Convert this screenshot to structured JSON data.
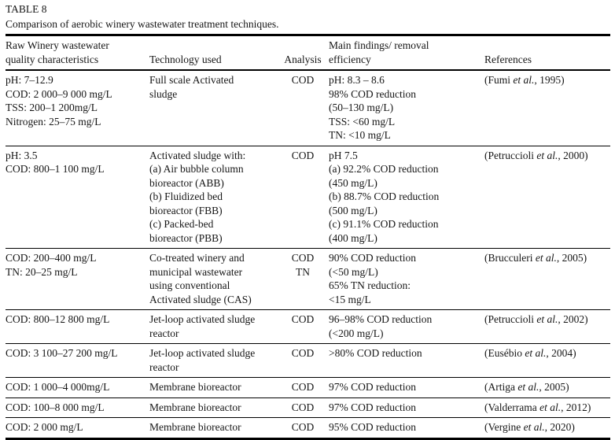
{
  "table": {
    "label": "TABLE 8",
    "caption": "Comparison of aerobic winery wastewater treatment techniques.",
    "columns": [
      "Raw Winery wastewater\nquality characteristics",
      "Technology used",
      "Analysis",
      "Main findings/ removal\nefficiency",
      "References"
    ],
    "rows": [
      {
        "characteristics": "pH: 7–12.9\nCOD: 2 000–9 000 mg/L\nTSS: 200–1 200mg/L\nNitrogen: 25–75 mg/L",
        "technology": "Full scale Activated\nsludge",
        "analysis": "COD",
        "findings": "pH: 8.3 – 8.6\n98% COD reduction\n(50–130 mg/L)\nTSS: <60 mg/L\nTN: <10 mg/L",
        "ref_pre": "(Fumi ",
        "ref_italic": "et al.",
        "ref_post": ", 1995)"
      },
      {
        "characteristics": "pH: 3.5\nCOD: 800–1 100 mg/L",
        "technology": "Activated sludge with:\n(a)  Air bubble column\nbioreactor (ABB)\n(b)  Fluidized bed\nbioreactor (FBB)\n(c)  Packed-bed\nbioreactor (PBB)",
        "analysis": "COD",
        "findings": "pH 7.5\n(a)  92.2% COD reduction\n(450 mg/L)\n(b) 88.7% COD reduction\n(500 mg/L)\n(c) 91.1% COD reduction\n(400 mg/L)",
        "ref_pre": "(Petruccioli ",
        "ref_italic": "et al.",
        "ref_post": ", 2000)"
      },
      {
        "characteristics": "COD: 200–400 mg/L\nTN: 20–25 mg/L",
        "technology": "Co-treated winery and\nmunicipal wastewater\nusing conventional\nActivated sludge (CAS)",
        "analysis": "COD\nTN",
        "findings": "90% COD reduction\n(<50 mg/L)\n65% TN reduction:\n<15 mg/L",
        "ref_pre": "(Brucculeri ",
        "ref_italic": "et al.",
        "ref_post": ", 2005)"
      },
      {
        "characteristics": "COD: 800–12 800 mg/L",
        "technology": "Jet-loop activated sludge\nreactor",
        "analysis": "COD",
        "findings": "96–98% COD reduction\n(<200 mg/L)",
        "ref_pre": "(Petruccioli ",
        "ref_italic": "et al.",
        "ref_post": ", 2002)"
      },
      {
        "characteristics": "COD: 3 100–27 200 mg/L",
        "technology": "Jet-loop activated sludge\nreactor",
        "analysis": "COD",
        "findings": ">80% COD reduction",
        "ref_pre": "(Eusébio ",
        "ref_italic": "et al.",
        "ref_post": ", 2004)"
      },
      {
        "characteristics": "COD: 1 000–4 000mg/L",
        "technology": "Membrane bioreactor",
        "analysis": "COD",
        "findings": "97% COD reduction",
        "ref_pre": "(Artiga ",
        "ref_italic": "et al.",
        "ref_post": ", 2005)"
      },
      {
        "characteristics": "COD: 100–8 000 mg/L",
        "technology": "Membrane bioreactor",
        "analysis": "COD",
        "findings": "97% COD reduction",
        "ref_pre": "(Valderrama ",
        "ref_italic": "et al.",
        "ref_post": ", 2012)"
      },
      {
        "characteristics": "COD: 2 000 mg/L",
        "technology": "Membrane bioreactor",
        "analysis": "COD",
        "findings": "95% COD reduction",
        "ref_pre": "(Vergine ",
        "ref_italic": "et al.",
        "ref_post": ", 2020)"
      }
    ]
  }
}
